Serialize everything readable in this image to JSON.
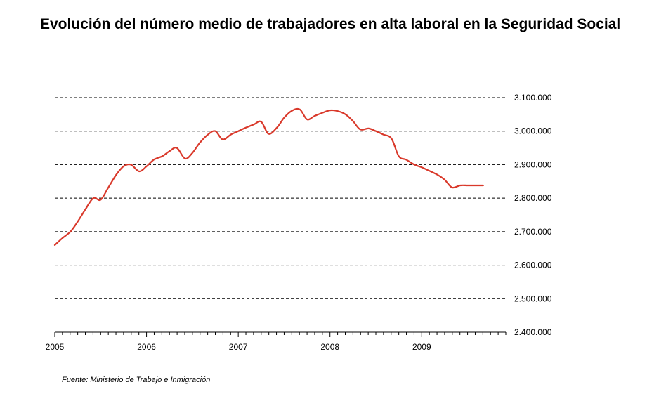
{
  "title": "Evolución del número medio de trabajadores en alta laboral en la Seguridad Social",
  "source": "Fuente: Ministerio de Trabajo e Inmigración",
  "colors": {
    "line": "#d9392b",
    "grid": "#000000",
    "axis": "#000000"
  },
  "chart_data": {
    "type": "line",
    "title": "Evolución del número medio de trabajadores en alta laboral en la Seguridad Social",
    "xlabel": "",
    "ylabel": "",
    "xlim": [
      2005,
      2009.9167
    ],
    "ylim": [
      2400000,
      3100000
    ],
    "y_ticks": [
      2400000,
      2500000,
      2600000,
      2700000,
      2800000,
      2900000,
      3000000,
      3100000
    ],
    "y_tick_labels": [
      "2.400.000",
      "2.500.000",
      "2.600.000",
      "2.700.000",
      "2.800.000",
      "2.900.000",
      "3.000.000",
      "3.100.000"
    ],
    "y_axis_position": "right",
    "x_ticks": [
      2005,
      2006,
      2007,
      2008,
      2009
    ],
    "x_tick_labels": [
      "2005",
      "2006",
      "2007",
      "2008",
      "2009"
    ],
    "grid": "horizontal dashed",
    "legend": "none",
    "series": [
      {
        "color": "#d9392b",
        "x": [
          2005.0,
          2005.08,
          2005.17,
          2005.25,
          2005.33,
          2005.42,
          2005.5,
          2005.58,
          2005.67,
          2005.75,
          2005.83,
          2005.92,
          2006.0,
          2006.08,
          2006.17,
          2006.25,
          2006.33,
          2006.42,
          2006.5,
          2006.58,
          2006.67,
          2006.75,
          2006.83,
          2006.92,
          2007.0,
          2007.08,
          2007.17,
          2007.25,
          2007.33,
          2007.42,
          2007.5,
          2007.58,
          2007.67,
          2007.75,
          2007.83,
          2007.92,
          2008.0,
          2008.08,
          2008.17,
          2008.25,
          2008.33,
          2008.42,
          2008.5,
          2008.58,
          2008.67,
          2008.75,
          2008.83,
          2008.92,
          2009.0,
          2009.08,
          2009.17,
          2009.25,
          2009.33,
          2009.42,
          2009.5,
          2009.58,
          2009.67
        ],
        "values": [
          2660000,
          2680000,
          2700000,
          2730000,
          2765000,
          2800000,
          2795000,
          2830000,
          2870000,
          2895000,
          2900000,
          2880000,
          2895000,
          2915000,
          2925000,
          2940000,
          2950000,
          2918000,
          2935000,
          2965000,
          2990000,
          3000000,
          2975000,
          2990000,
          3000000,
          3010000,
          3020000,
          3028000,
          2992000,
          3010000,
          3040000,
          3060000,
          3065000,
          3035000,
          3045000,
          3055000,
          3062000,
          3060000,
          3050000,
          3030000,
          3005000,
          3008000,
          3000000,
          2990000,
          2978000,
          2925000,
          2915000,
          2900000,
          2892000,
          2882000,
          2870000,
          2855000,
          2832000,
          2838000,
          2838000,
          2838000,
          2838000
        ]
      }
    ]
  }
}
